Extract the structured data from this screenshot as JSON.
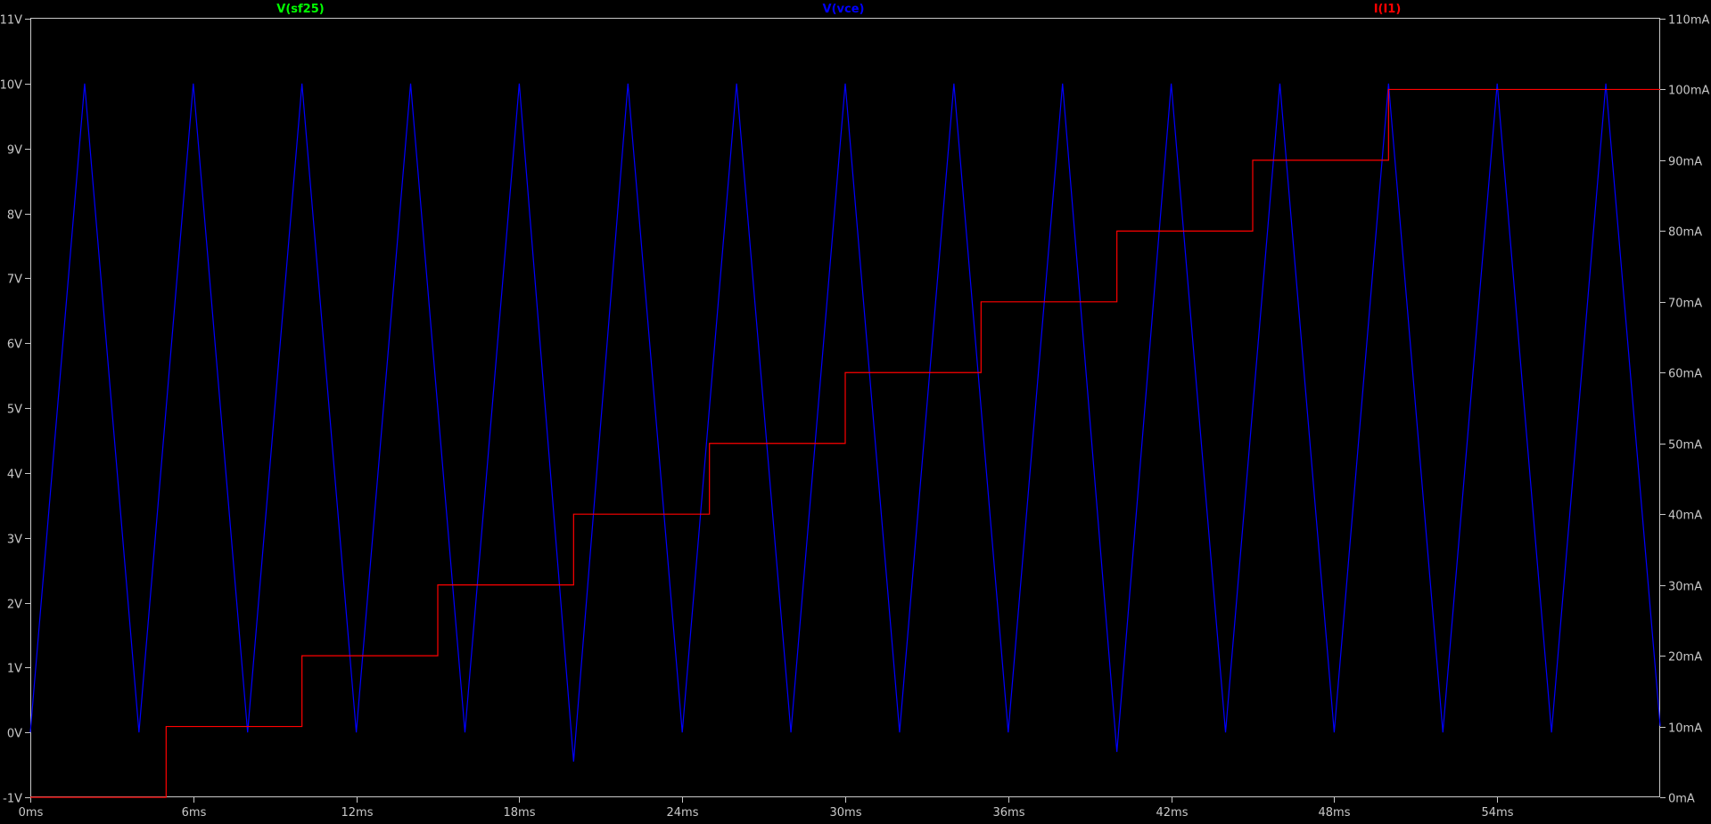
{
  "chart_data": {
    "type": "line",
    "grid": false,
    "background_color": "#000000",
    "frame_color": "#c8c8c8",
    "text_color": "#c8c8c8",
    "x_axis": {
      "unit": "ms",
      "range": [
        0,
        60
      ],
      "ticks": [
        {
          "value": 0,
          "label": "0ms"
        },
        {
          "value": 6,
          "label": "6ms"
        },
        {
          "value": 12,
          "label": "12ms"
        },
        {
          "value": 18,
          "label": "18ms"
        },
        {
          "value": 24,
          "label": "24ms"
        },
        {
          "value": 30,
          "label": "30ms"
        },
        {
          "value": 36,
          "label": "36ms"
        },
        {
          "value": 42,
          "label": "42ms"
        },
        {
          "value": 48,
          "label": "48ms"
        },
        {
          "value": 54,
          "label": "54ms"
        }
      ]
    },
    "y_axis_left": {
      "unit": "V",
      "range": [
        -1,
        11
      ],
      "ticks": [
        {
          "value": -1,
          "label": "-1V"
        },
        {
          "value": 0,
          "label": "0V"
        },
        {
          "value": 1,
          "label": "1V"
        },
        {
          "value": 2,
          "label": "2V"
        },
        {
          "value": 3,
          "label": "3V"
        },
        {
          "value": 4,
          "label": "4V"
        },
        {
          "value": 5,
          "label": "5V"
        },
        {
          "value": 6,
          "label": "6V"
        },
        {
          "value": 7,
          "label": "7V"
        },
        {
          "value": 8,
          "label": "8V"
        },
        {
          "value": 9,
          "label": "9V"
        },
        {
          "value": 10,
          "label": "10V"
        },
        {
          "value": 11,
          "label": "11V"
        }
      ]
    },
    "y_axis_right": {
      "unit": "mA",
      "range": [
        0,
        110
      ],
      "ticks": [
        {
          "value": 0,
          "label": "0mA"
        },
        {
          "value": 10,
          "label": "10mA"
        },
        {
          "value": 20,
          "label": "20mA"
        },
        {
          "value": 30,
          "label": "30mA"
        },
        {
          "value": 40,
          "label": "40mA"
        },
        {
          "value": 50,
          "label": "50mA"
        },
        {
          "value": 60,
          "label": "60mA"
        },
        {
          "value": 70,
          "label": "70mA"
        },
        {
          "value": 80,
          "label": "80mA"
        },
        {
          "value": 90,
          "label": "90mA"
        },
        {
          "value": 100,
          "label": "100mA"
        },
        {
          "value": 110,
          "label": "110mA"
        }
      ]
    },
    "series": [
      {
        "name": "V(sf25)",
        "color": "#00ff00",
        "axis": "left",
        "points": []
      },
      {
        "name": "V(vce)",
        "color": "#0000ff",
        "axis": "left",
        "style": "triangle",
        "points": [
          [
            0,
            0
          ],
          [
            2,
            10
          ],
          [
            4,
            0
          ],
          [
            6,
            10
          ],
          [
            8,
            0
          ],
          [
            10,
            10
          ],
          [
            12,
            0
          ],
          [
            14,
            10
          ],
          [
            16,
            0
          ],
          [
            18,
            10
          ],
          [
            20,
            -0.45
          ],
          [
            22,
            10
          ],
          [
            24,
            0
          ],
          [
            26,
            10
          ],
          [
            28,
            0
          ],
          [
            30,
            10
          ],
          [
            32,
            0
          ],
          [
            34,
            10
          ],
          [
            36,
            0
          ],
          [
            38,
            10
          ],
          [
            40,
            -0.3
          ],
          [
            42,
            10
          ],
          [
            44,
            0
          ],
          [
            46,
            10
          ],
          [
            48,
            0
          ],
          [
            50,
            10
          ],
          [
            52,
            0
          ],
          [
            54,
            10
          ],
          [
            56,
            0
          ],
          [
            58,
            10
          ],
          [
            60,
            0.1
          ]
        ]
      },
      {
        "name": "I(I1)",
        "color": "#ff0000",
        "axis": "right",
        "style": "step",
        "points": [
          [
            0,
            0
          ],
          [
            5,
            0
          ],
          [
            5,
            10
          ],
          [
            10,
            10
          ],
          [
            10,
            20
          ],
          [
            15,
            20
          ],
          [
            15,
            30
          ],
          [
            20,
            30
          ],
          [
            20,
            40
          ],
          [
            25,
            40
          ],
          [
            25,
            50
          ],
          [
            30,
            50
          ],
          [
            30,
            60
          ],
          [
            35,
            60
          ],
          [
            35,
            70
          ],
          [
            40,
            70
          ],
          [
            40,
            80
          ],
          [
            45,
            80
          ],
          [
            45,
            90
          ],
          [
            50,
            90
          ],
          [
            50,
            100
          ],
          [
            60,
            100
          ]
        ]
      }
    ]
  }
}
